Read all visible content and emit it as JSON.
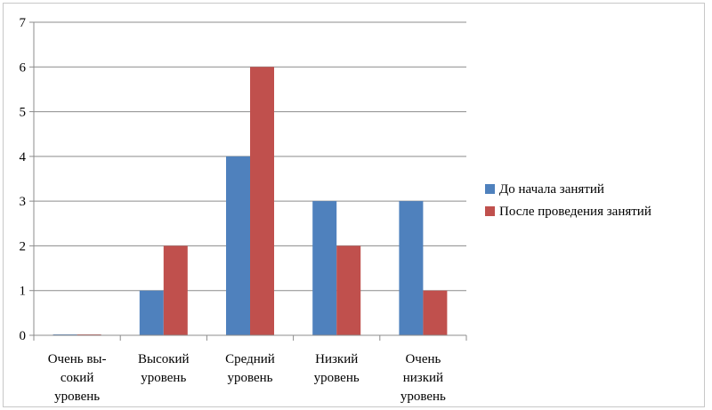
{
  "chart_data": {
    "type": "bar",
    "title": "",
    "xlabel": "",
    "ylabel": "",
    "ylim": [
      0,
      7
    ],
    "yticks": [
      0,
      1,
      2,
      3,
      4,
      5,
      6,
      7
    ],
    "grid": true,
    "legend_position": "right",
    "categories": [
      [
        "Очень вы-",
        "сокий",
        "уровень"
      ],
      [
        "Высокий",
        "уровень"
      ],
      [
        "Средний",
        "уровень"
      ],
      [
        "Низкий",
        "уровень"
      ],
      [
        "Очень",
        "низкий",
        "уровень"
      ]
    ],
    "series": [
      {
        "name": "До начала  занятий",
        "color": "#4f81bd",
        "values": [
          0,
          1,
          4,
          3,
          3
        ]
      },
      {
        "name": "После проведения занятий",
        "color": "#c0504d",
        "values": [
          0,
          2,
          6,
          2,
          1
        ]
      }
    ]
  }
}
